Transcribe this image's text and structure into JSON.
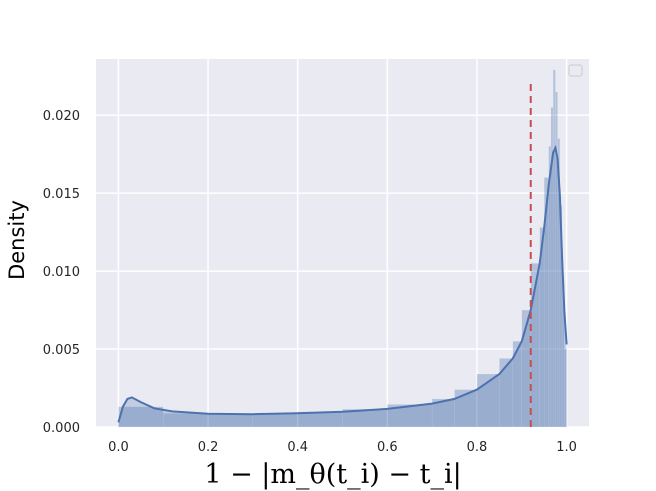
{
  "chart_data": {
    "type": "histogram",
    "xlabel": "1 − |m_θ(t_i) − t_i|",
    "ylabel": "Density",
    "xlim": [
      -0.05,
      1.05
    ],
    "ylim": [
      0,
      0.0236
    ],
    "xticks": [
      0.0,
      0.2,
      0.4,
      0.6,
      0.8,
      1.0
    ],
    "xtick_labels": [
      "0.0",
      "0.2",
      "0.4",
      "0.6",
      "0.8",
      "1.0"
    ],
    "yticks": [
      0.0,
      0.005,
      0.01,
      0.015,
      0.02
    ],
    "ytick_labels": [
      "0.000",
      "0.005",
      "0.010",
      "0.015",
      "0.020"
    ],
    "grid": true,
    "legend": "top-right (empty)",
    "kde": {
      "x": [
        0.0,
        0.01,
        0.02,
        0.03,
        0.05,
        0.08,
        0.12,
        0.2,
        0.3,
        0.4,
        0.5,
        0.6,
        0.7,
        0.75,
        0.8,
        0.85,
        0.88,
        0.9,
        0.92,
        0.94,
        0.95,
        0.96,
        0.97,
        0.975,
        0.98,
        0.985,
        0.99,
        0.995,
        1.0
      ],
      "y": [
        0.0003,
        0.0013,
        0.0018,
        0.0019,
        0.0016,
        0.0012,
        0.001,
        0.00085,
        0.00082,
        0.00088,
        0.00098,
        0.00116,
        0.0015,
        0.0018,
        0.0024,
        0.0034,
        0.0044,
        0.0055,
        0.0075,
        0.0105,
        0.0128,
        0.0155,
        0.0176,
        0.0179,
        0.0172,
        0.0148,
        0.0108,
        0.0075,
        0.0053
      ]
    },
    "histogram": {
      "bin_edges": [
        0.0,
        0.1,
        0.2,
        0.3,
        0.4,
        0.5,
        0.6,
        0.7,
        0.75,
        0.8,
        0.85,
        0.88,
        0.9,
        0.92,
        0.94,
        0.95,
        0.96,
        0.965,
        0.97,
        0.975,
        0.98,
        0.985,
        0.99,
        0.995,
        1.0
      ],
      "density": [
        0.0013,
        0.00088,
        0.00082,
        0.00087,
        0.00097,
        0.00114,
        0.00145,
        0.0018,
        0.0024,
        0.0034,
        0.0044,
        0.0055,
        0.0075,
        0.0105,
        0.0128,
        0.016,
        0.018,
        0.0205,
        0.0229,
        0.0215,
        0.0185,
        0.0142,
        0.0095,
        0.005
      ]
    },
    "threshold_line": {
      "x": 0.92,
      "style": "dashed",
      "color": "#c44e52"
    }
  },
  "colors": {
    "plot_background": "#eaeaf2",
    "grid": "#ffffff",
    "kde_line": "#4c72b0",
    "histogram_fill": "#4c72b0",
    "threshold": "#c44e52"
  }
}
